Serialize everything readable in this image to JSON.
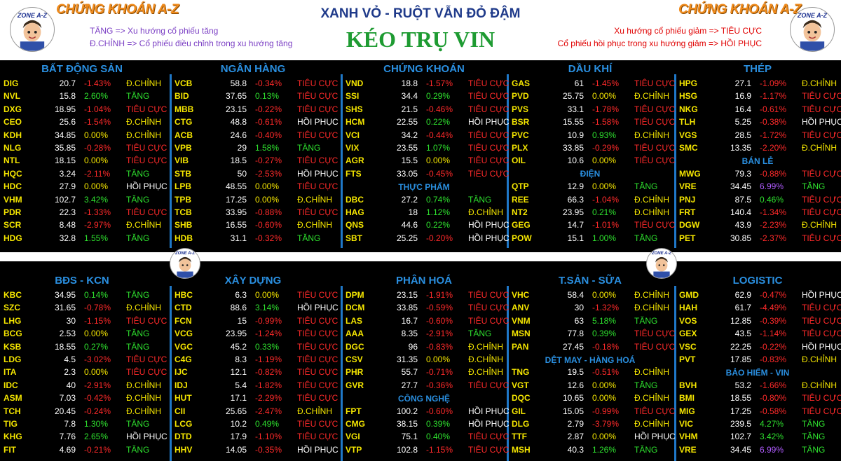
{
  "header": {
    "brand": "CHỨNG KHOÁN A-Z",
    "brand_right": "CHỨNG KHOÁN A-Z",
    "title": "XANH VỎ - RUỘT VẪN ĐỎ ĐẬM",
    "subtitle": "KÉO TRỤ VIN",
    "legend_left": [
      "TĂNG => Xu hướng cổ phiếu tăng",
      "Đ.CHỈNH => Cổ phiếu điều chỉnh trong xu hướng tăng"
    ],
    "legend_right": [
      "Xu hướng cổ phiếu giảm => TIÊU CỰC",
      "Cổ phiếu hồi phục trong xu hướng giảm => HỒI PHỤC"
    ],
    "avatar_label": "ZONE A-Z"
  },
  "colors": {
    "up": "#2ee02e",
    "down": "#ff2a2a",
    "ref": "#f5e600",
    "ceil": "#b05cff",
    "ticker": "#f5e600",
    "section_title": "#2a8fe0",
    "status_tang": "#2ee02e",
    "status_dchinh": "#f5e600",
    "status_tieucuc": "#ff2a2a",
    "status_hoiphuc": "#ffffff"
  },
  "sections": [
    {
      "title": "BẤT ĐỘNG SẢN",
      "rows": [
        [
          "DIG",
          "20.7",
          "-1.43%",
          "Đ.CHỈNH"
        ],
        [
          "NVL",
          "15.8",
          "2.60%",
          "TĂNG"
        ],
        [
          "DXG",
          "18.95",
          "-1.04%",
          "TIÊU CỰC"
        ],
        [
          "CEO",
          "25.6",
          "-1.54%",
          "Đ.CHỈNH"
        ],
        [
          "KDH",
          "34.85",
          "0.00%",
          "Đ.CHỈNH"
        ],
        [
          "NLG",
          "35.85",
          "-0.28%",
          "TIÊU CỰC"
        ],
        [
          "NTL",
          "18.15",
          "0.00%",
          "TIÊU CỰC"
        ],
        [
          "HQC",
          "3.24",
          "-2.11%",
          "TĂNG"
        ],
        [
          "HDC",
          "27.9",
          "0.00%",
          "HỒI PHỤC"
        ],
        [
          "VHM",
          "102.7",
          "3.42%",
          "TĂNG"
        ],
        [
          "PDR",
          "22.3",
          "-1.33%",
          "TIÊU CỰC"
        ],
        [
          "SCR",
          "8.48",
          "-2.97%",
          "Đ.CHỈNH"
        ],
        [
          "HDG",
          "32.8",
          "1.55%",
          "TĂNG"
        ]
      ]
    },
    {
      "title": "NGÂN HÀNG",
      "rows": [
        [
          "VCB",
          "58.8",
          "-0.34%",
          "TIÊU CỰC"
        ],
        [
          "BID",
          "37.65",
          "0.13%",
          "TIÊU CỰC"
        ],
        [
          "MBB",
          "23.15",
          "-0.22%",
          "TIÊU CỰC"
        ],
        [
          "CTG",
          "48.8",
          "-0.61%",
          "HỒI PHỤC"
        ],
        [
          "ACB",
          "24.6",
          "-0.40%",
          "TIÊU CỰC"
        ],
        [
          "VPB",
          "29",
          "1.58%",
          "TĂNG"
        ],
        [
          "VIB",
          "18.5",
          "-0.27%",
          "TIÊU CỰC"
        ],
        [
          "STB",
          "50",
          "-2.53%",
          "HỒI PHỤC"
        ],
        [
          "LPB",
          "48.55",
          "0.00%",
          "TIÊU CỰC"
        ],
        [
          "TPB",
          "17.25",
          "0.00%",
          "Đ.CHỈNH"
        ],
        [
          "TCB",
          "33.95",
          "-0.88%",
          "TIÊU CỰC"
        ],
        [
          "SHB",
          "16.55",
          "-0.60%",
          "Đ.CHỈNH"
        ],
        [
          "HDB",
          "31.1",
          "-0.32%",
          "TĂNG"
        ]
      ]
    },
    {
      "title": "CHỨNG KHOÁN",
      "rows": [
        [
          "VND",
          "18.8",
          "-1.57%",
          "TIÊU CỰC"
        ],
        [
          "SSI",
          "34.4",
          "0.29%",
          "TIÊU CỰC"
        ],
        [
          "SHS",
          "21.5",
          "-0.46%",
          "TIÊU CỰC"
        ],
        [
          "HCM",
          "22.55",
          "0.22%",
          "HỒI PHỤC"
        ],
        [
          "VCI",
          "34.2",
          "-0.44%",
          "TIÊU CỰC"
        ],
        [
          "VIX",
          "23.55",
          "1.07%",
          "TIÊU CỰC"
        ],
        [
          "AGR",
          "15.5",
          "0.00%",
          "TIÊU CỰC"
        ],
        [
          "FTS",
          "33.05",
          "-0.45%",
          "TIÊU CỰC"
        ]
      ],
      "sub": {
        "title": "THỰC PHẨM",
        "rows": [
          [
            "DBC",
            "27.2",
            "0.74%",
            "TĂNG"
          ],
          [
            "HAG",
            "18",
            "1.12%",
            "Đ.CHỈNH"
          ],
          [
            "QNS",
            "44.6",
            "0.22%",
            "HỒI PHỤC"
          ],
          [
            "SBT",
            "25.25",
            "-0.20%",
            "HỒI PHỤC"
          ]
        ]
      }
    },
    {
      "title": "DẦU KHÍ",
      "rows": [
        [
          "GAS",
          "61",
          "-1.45%",
          "TIÊU CỰC"
        ],
        [
          "PVD",
          "25.75",
          "0.00%",
          "Đ.CHỈNH"
        ],
        [
          "PVS",
          "33.1",
          "-1.78%",
          "TIÊU CỰC"
        ],
        [
          "BSR",
          "15.55",
          "-1.58%",
          "TIÊU CỰC"
        ],
        [
          "PVC",
          "10.9",
          "0.93%",
          "Đ.CHỈNH"
        ],
        [
          "PLX",
          "33.85",
          "-0.29%",
          "TIÊU CỰC"
        ],
        [
          "OIL",
          "10.6",
          "0.00%",
          "TIÊU CỰC"
        ]
      ],
      "sub": {
        "title": "ĐIỆN",
        "rows": [
          [
            "QTP",
            "12.9",
            "0.00%",
            "TĂNG"
          ],
          [
            "REE",
            "66.3",
            "-1.04%",
            "Đ.CHỈNH"
          ],
          [
            "NT2",
            "23.95",
            "0.21%",
            "Đ.CHỈNH"
          ],
          [
            "GEG",
            "14.7",
            "-1.01%",
            "TIÊU CỰC"
          ],
          [
            "POW",
            "15.1",
            "1.00%",
            "TĂNG"
          ]
        ]
      }
    },
    {
      "title": "THÉP",
      "rows": [
        [
          "HPG",
          "27.1",
          "-1.09%",
          "Đ.CHỈNH"
        ],
        [
          "HSG",
          "16.9",
          "-1.17%",
          "TIÊU CỰC"
        ],
        [
          "NKG",
          "16.4",
          "-0.61%",
          "TIÊU CỰC"
        ],
        [
          "TLH",
          "5.25",
          "-0.38%",
          "HỒI PHỤC"
        ],
        [
          "VGS",
          "28.5",
          "-1.72%",
          "TIÊU CỰC"
        ],
        [
          "SMC",
          "13.35",
          "-2.20%",
          "Đ.CHỈNH"
        ]
      ],
      "sub": {
        "title": "BÁN LẺ",
        "rows": [
          [
            "MWG",
            "79.3",
            "-0.88%",
            "TIÊU CỰC"
          ],
          [
            "VRE",
            "34.45",
            "6.99%",
            "TĂNG"
          ],
          [
            "PNJ",
            "87.5",
            "0.46%",
            "TIÊU CỰC"
          ],
          [
            "FRT",
            "140.4",
            "-1.34%",
            "TIÊU CỰC"
          ],
          [
            "DGW",
            "43.9",
            "-2.23%",
            "Đ.CHỈNH"
          ],
          [
            "PET",
            "30.85",
            "-2.37%",
            "TIÊU CỰC"
          ]
        ]
      }
    },
    {
      "title": "BĐS - KCN",
      "rows": [
        [
          "KBC",
          "34.95",
          "0.14%",
          "TĂNG"
        ],
        [
          "SZC",
          "31.65",
          "-0.78%",
          "Đ.CHỈNH"
        ],
        [
          "LHG",
          "30",
          "-1.15%",
          "TIÊU CỰC"
        ],
        [
          "BCG",
          "2.53",
          "0.00%",
          "TĂNG"
        ],
        [
          "KSB",
          "18.55",
          "0.27%",
          "TĂNG"
        ],
        [
          "LDG",
          "4.5",
          "-3.02%",
          "TIÊU CỰC"
        ],
        [
          "ITA",
          "2.3",
          "0.00%",
          "TIÊU CỰC"
        ],
        [
          "IDC",
          "40",
          "-2.91%",
          "Đ.CHỈNH"
        ],
        [
          "ASM",
          "7.03",
          "-0.42%",
          "Đ.CHỈNH"
        ],
        [
          "TCH",
          "20.45",
          "-0.24%",
          "Đ.CHỈNH"
        ],
        [
          "TIG",
          "7.8",
          "1.30%",
          "TĂNG"
        ],
        [
          "KHG",
          "7.76",
          "2.65%",
          "HỒI PHỤC"
        ],
        [
          "FIT",
          "4.69",
          "-0.21%",
          "TĂNG"
        ]
      ]
    },
    {
      "title": "XÂY DỰNG",
      "rows": [
        [
          "HBC",
          "6.3",
          "0.00%",
          "TIÊU CỰC"
        ],
        [
          "CTD",
          "88.6",
          "3.14%",
          "HỒI PHỤC"
        ],
        [
          "FCN",
          "15",
          "-0.99%",
          "TIÊU CỰC"
        ],
        [
          "VCG",
          "23.95",
          "-1.24%",
          "TIÊU CỰC"
        ],
        [
          "VGC",
          "45.2",
          "0.33%",
          "TIÊU CỰC"
        ],
        [
          "C4G",
          "8.3",
          "-1.19%",
          "TIÊU CỰC"
        ],
        [
          "IJC",
          "12.1",
          "-0.82%",
          "TIÊU CỰC"
        ],
        [
          "IDJ",
          "5.4",
          "-1.82%",
          "TIÊU CỰC"
        ],
        [
          "HUT",
          "17.1",
          "-2.29%",
          "TIÊU CỰC"
        ],
        [
          "CII",
          "25.65",
          "-2.47%",
          "Đ.CHỈNH"
        ],
        [
          "LCG",
          "10.2",
          "0.49%",
          "TIÊU CỰC"
        ],
        [
          "DTD",
          "17.9",
          "-1.10%",
          "TIÊU CỰC"
        ],
        [
          "HHV",
          "14.05",
          "-0.35%",
          "HỒI PHỤC"
        ]
      ]
    },
    {
      "title": "PHÂN HOÁ",
      "rows": [
        [
          "DPM",
          "23.15",
          "-1.91%",
          "TIÊU CỰC"
        ],
        [
          "DCM",
          "33.85",
          "-0.59%",
          "TIÊU CỰC"
        ],
        [
          "LAS",
          "16.7",
          "-0.60%",
          "TIÊU CỰC"
        ],
        [
          "AAA",
          "8.35",
          "-2.91%",
          "TĂNG"
        ],
        [
          "DGC",
          "96",
          "-0.83%",
          "Đ.CHỈNH"
        ],
        [
          "CSV",
          "31.35",
          "0.00%",
          "Đ.CHỈNH"
        ],
        [
          "PHR",
          "55.7",
          "-0.71%",
          "Đ.CHỈNH"
        ],
        [
          "GVR",
          "27.7",
          "-0.36%",
          "TIÊU CỰC"
        ]
      ],
      "sub": {
        "title": "CÔNG NGHỆ",
        "rows": [
          [
            "FPT",
            "100.2",
            "-0.60%",
            "HỒI PHỤC"
          ],
          [
            "CMG",
            "38.15",
            "0.39%",
            "HỒI PHỤC"
          ],
          [
            "VGI",
            "75.1",
            "0.40%",
            "TIÊU CỰC"
          ],
          [
            "VTP",
            "102.8",
            "-1.15%",
            "TIÊU CỰC"
          ]
        ]
      }
    },
    {
      "title": "T.SẢN - SỮA",
      "rows": [
        [
          "VHC",
          "58.4",
          "0.00%",
          "Đ.CHỈNH"
        ],
        [
          "ANV",
          "30",
          "-1.32%",
          "Đ.CHỈNH"
        ],
        [
          "VNM",
          "63",
          "5.18%",
          "TĂNG"
        ],
        [
          "MSN",
          "77.8",
          "0.39%",
          "TIÊU CỰC"
        ],
        [
          "PAN",
          "27.45",
          "-0.18%",
          "TIÊU CỰC"
        ]
      ],
      "sub": {
        "title": "DỆT MAY - HÀNG HOÁ",
        "rows": [
          [
            "TNG",
            "19.5",
            "-0.51%",
            "Đ.CHỈNH"
          ],
          [
            "VGT",
            "12.6",
            "0.00%",
            "TĂNG"
          ],
          [
            "DQC",
            "10.65",
            "0.00%",
            "Đ.CHỈNH"
          ],
          [
            "GIL",
            "15.05",
            "-0.99%",
            "TIÊU CỰC"
          ],
          [
            "DLG",
            "2.79",
            "-3.79%",
            "Đ.CHỈNH"
          ],
          [
            "TTF",
            "2.87",
            "0.00%",
            "HỒI PHỤC"
          ],
          [
            "MSH",
            "40.3",
            "1.26%",
            "TĂNG"
          ]
        ]
      }
    },
    {
      "title": "LOGISTIC",
      "rows": [
        [
          "GMD",
          "62.9",
          "-0.47%",
          "HỒI PHỤC"
        ],
        [
          "HAH",
          "61.7",
          "-4.49%",
          "TIÊU CỰC"
        ],
        [
          "VOS",
          "12.85",
          "-0.39%",
          "TIÊU CỰC"
        ],
        [
          "GEX",
          "43.5",
          "-1.14%",
          "TIÊU CỰC"
        ],
        [
          "VSC",
          "22.25",
          "-0.22%",
          "HỒI PHỤC"
        ],
        [
          "PVT",
          "17.85",
          "-0.83%",
          "Đ.CHỈNH"
        ]
      ],
      "sub": {
        "title": "BẢO HIỂM - VIN",
        "rows": [
          [
            "BVH",
            "53.2",
            "-1.66%",
            "Đ.CHỈNH"
          ],
          [
            "BMI",
            "18.55",
            "-0.80%",
            "TIÊU CỰC"
          ],
          [
            "MIG",
            "17.25",
            "-0.58%",
            "TIÊU CỰC"
          ],
          [
            "VIC",
            "239.5",
            "4.27%",
            "TĂNG"
          ],
          [
            "VHM",
            "102.7",
            "3.42%",
            "TĂNG"
          ],
          [
            "VRE",
            "34.45",
            "6.99%",
            "TĂNG"
          ]
        ]
      }
    }
  ]
}
